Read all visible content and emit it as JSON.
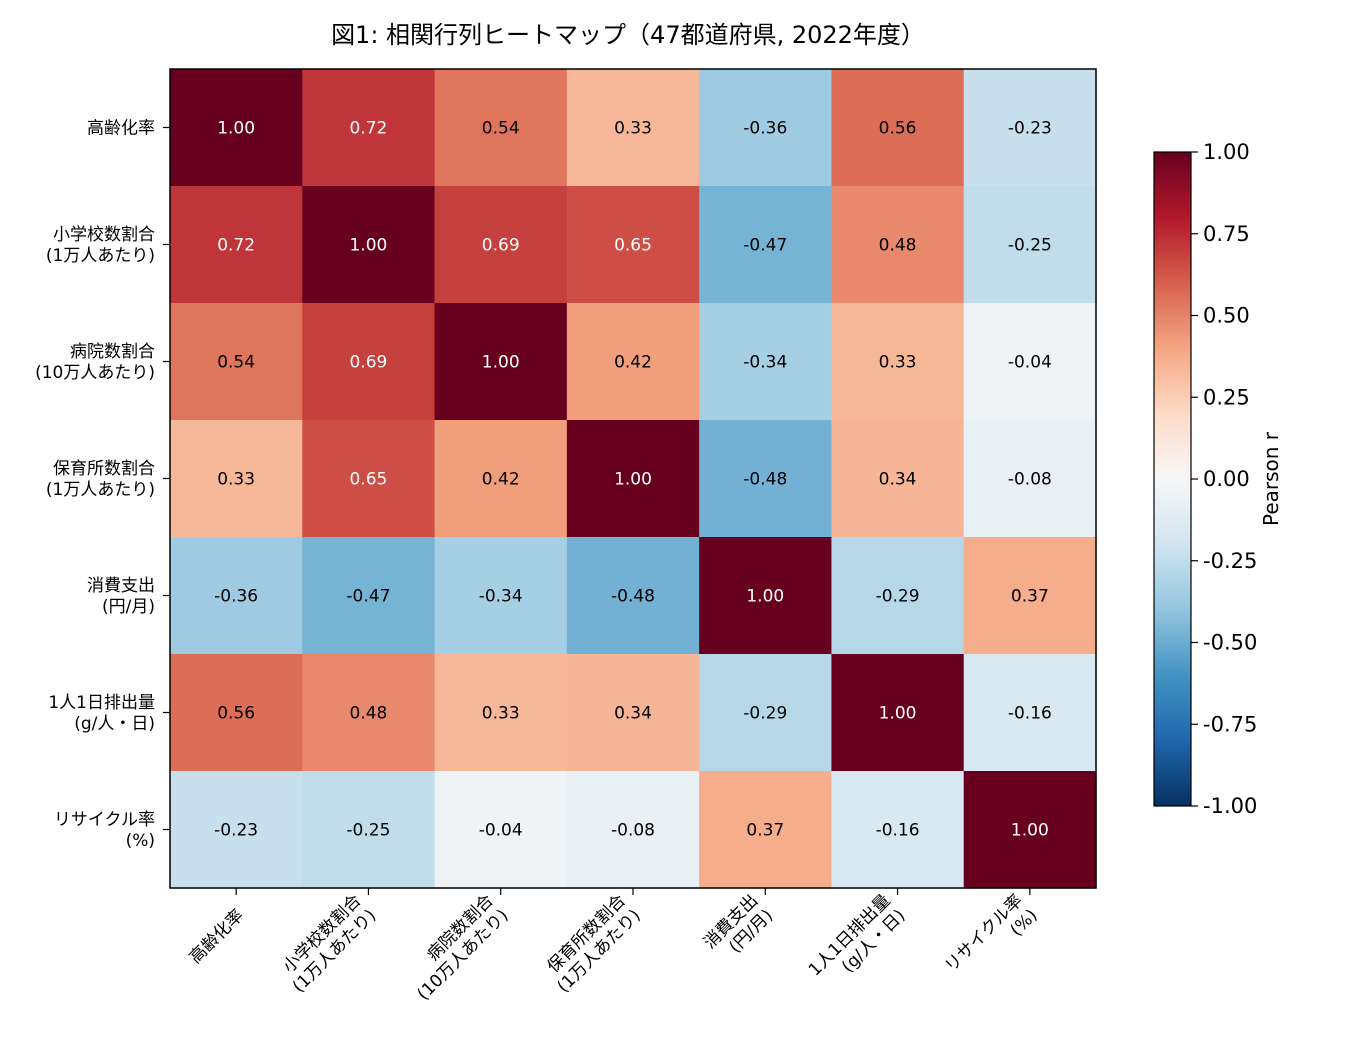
{
  "chart_data": {
    "type": "heatmap",
    "title": "図1: 相関行列ヒートマップ（47都道府県, 2022年度）",
    "labels": [
      [
        "高齢化率"
      ],
      [
        "小学校数割合",
        "(1万人あたり)"
      ],
      [
        "病院数割合",
        "(10万人あたり)"
      ],
      [
        "保育所数割合",
        "(1万人あたり)"
      ],
      [
        "消費支出",
        "(円/月)"
      ],
      [
        "1人1日排出量",
        "(g/人・日)"
      ],
      [
        "リサイクル率",
        "(%)"
      ]
    ],
    "matrix": [
      [
        1.0,
        0.72,
        0.54,
        0.33,
        -0.36,
        0.56,
        -0.23
      ],
      [
        0.72,
        1.0,
        0.69,
        0.65,
        -0.47,
        0.48,
        -0.25
      ],
      [
        0.54,
        0.69,
        1.0,
        0.42,
        -0.34,
        0.33,
        -0.04
      ],
      [
        0.33,
        0.65,
        0.42,
        1.0,
        -0.48,
        0.34,
        -0.08
      ],
      [
        -0.36,
        -0.47,
        -0.34,
        -0.48,
        1.0,
        -0.29,
        0.37
      ],
      [
        0.56,
        0.48,
        0.33,
        0.34,
        -0.29,
        1.0,
        -0.16
      ],
      [
        -0.23,
        -0.25,
        -0.04,
        -0.08,
        0.37,
        -0.16,
        1.0
      ]
    ],
    "value_labels": [
      [
        "1.00",
        "0.72",
        "0.54",
        "0.33",
        "-0.36",
        "0.56",
        "-0.23"
      ],
      [
        "0.72",
        "1.00",
        "0.69",
        "0.65",
        "-0.47",
        "0.48",
        "-0.25"
      ],
      [
        "0.54",
        "0.69",
        "1.00",
        "0.42",
        "-0.34",
        "0.33",
        "-0.04"
      ],
      [
        "0.33",
        "0.65",
        "0.42",
        "1.00",
        "-0.48",
        "0.34",
        "-0.08"
      ],
      [
        "-0.36",
        "-0.47",
        "-0.34",
        "-0.48",
        "1.00",
        "-0.29",
        "0.37"
      ],
      [
        "0.56",
        "0.48",
        "0.33",
        "0.34",
        "-0.29",
        "1.00",
        "-0.16"
      ],
      [
        "-0.23",
        "-0.25",
        "-0.04",
        "-0.08",
        "0.37",
        "-0.16",
        "1.00"
      ]
    ],
    "colormap": "RdBu_r",
    "vmin": -1.0,
    "vmax": 1.0,
    "colorbar": {
      "label": "Pearson r",
      "ticks": [
        1.0,
        0.75,
        0.5,
        0.25,
        0.0,
        -0.25,
        -0.5,
        -0.75,
        -1.0
      ],
      "tick_labels": [
        "1.00",
        "0.75",
        "0.50",
        "0.25",
        "0.00",
        "-0.25",
        "-0.50",
        "-0.75",
        "-1.00"
      ]
    }
  }
}
